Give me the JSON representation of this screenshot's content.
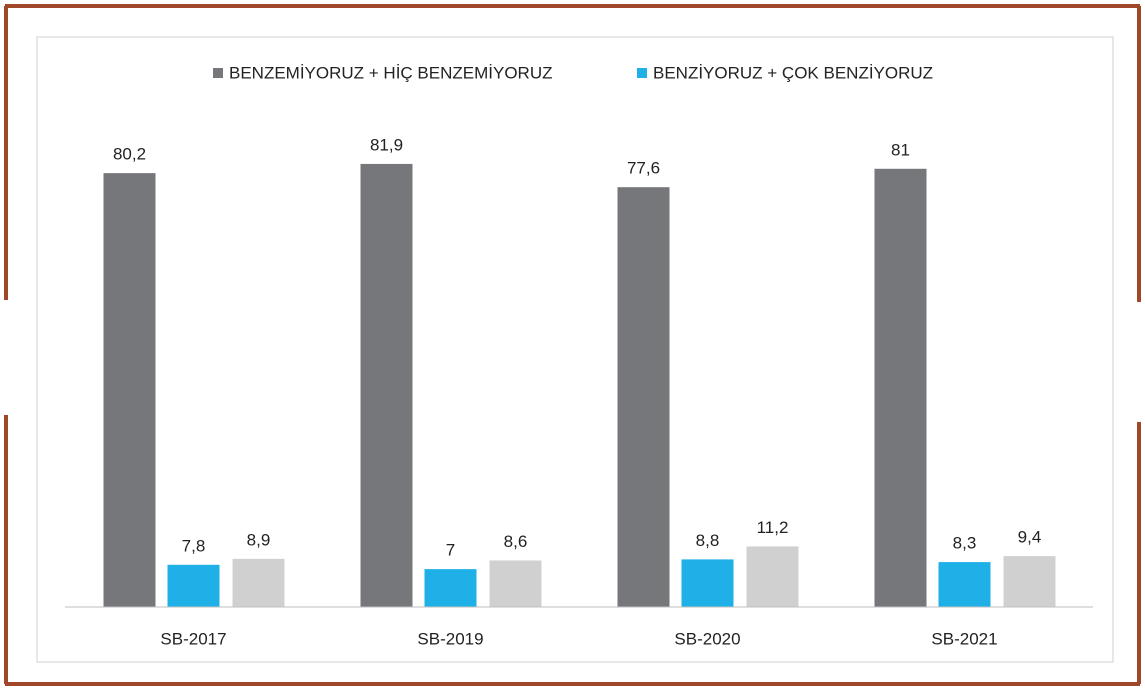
{
  "chart_data": {
    "type": "bar",
    "categories": [
      "SB-2017",
      "SB-2019",
      "SB-2020",
      "SB-2021"
    ],
    "series": [
      {
        "name": "BENZEMİYORUZ + HİÇ BENZEMİYORUZ",
        "color": "#75777a",
        "values": [
          80.2,
          81.9,
          77.6,
          81
        ]
      },
      {
        "name": "BENZİYORUZ + ÇOK BENZİYORUZ",
        "color": "#1eb0e6",
        "values": [
          7.8,
          7,
          8.8,
          8.3
        ]
      },
      {
        "color": "#d0d0d0",
        "values": [
          8.9,
          8.6,
          11.2,
          9.4
        ]
      }
    ],
    "value_labels": [
      [
        "80,2",
        "81,9",
        "77,6",
        "81"
      ],
      [
        "7,8",
        "7",
        "8,8",
        "8,3"
      ],
      [
        "8,9",
        "8,6",
        "11,2",
        "9,4"
      ]
    ],
    "ylim": [
      0,
      100
    ],
    "legend": "top"
  }
}
